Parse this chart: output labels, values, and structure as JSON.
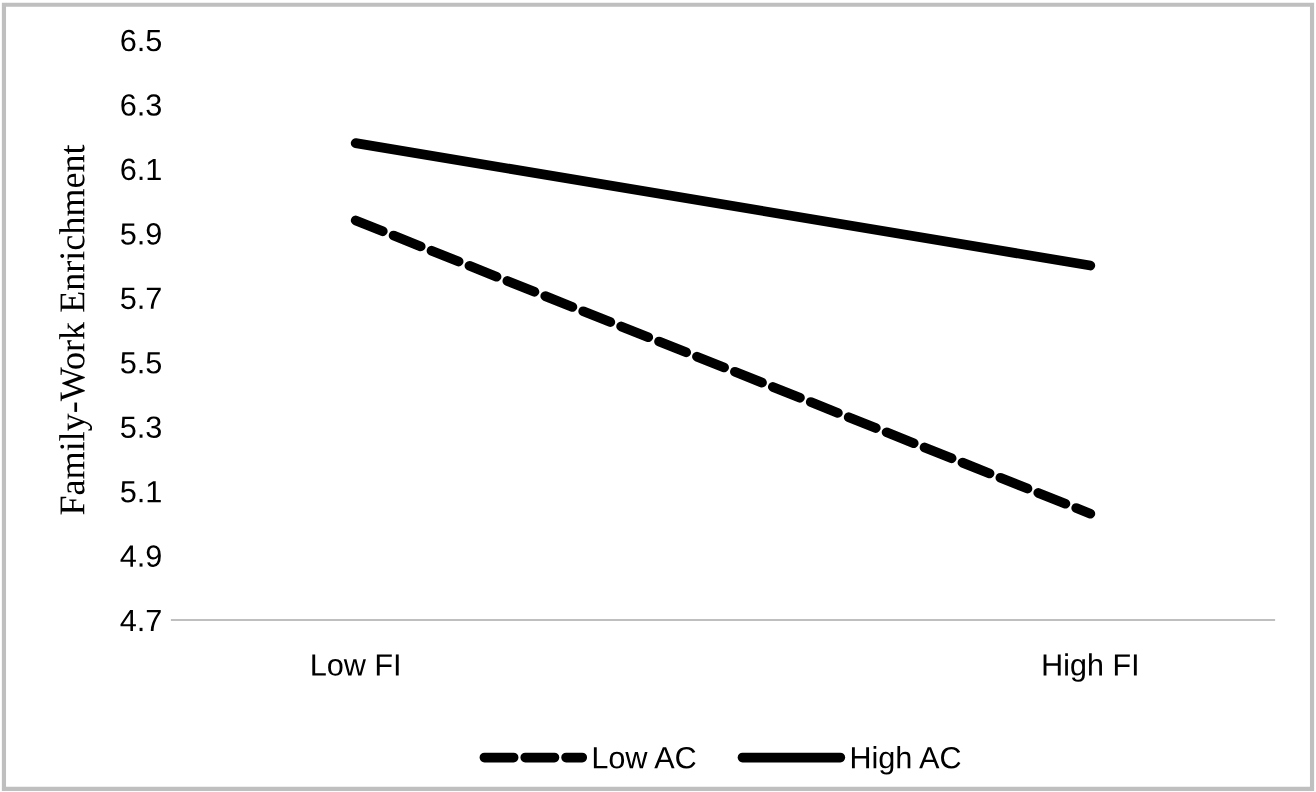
{
  "chart_data": {
    "type": "line",
    "ylabel": "Family-Work Enrichment",
    "categories": [
      "Low FI",
      "High FI"
    ],
    "series": [
      {
        "name": "Low AC",
        "color": "#000000",
        "values": [
          5.94,
          5.03
        ],
        "line_style": "dashed"
      },
      {
        "name": "High AC",
        "color": "#000000",
        "values": [
          6.18,
          5.8
        ],
        "line_style": "solid"
      }
    ],
    "ylim": [
      4.7,
      6.5
    ],
    "yticks": [
      4.7,
      4.9,
      5.1,
      5.3,
      5.5,
      5.7,
      5.9,
      6.1,
      6.3,
      6.5
    ],
    "grid": false,
    "legend": "bottom",
    "marker": "none"
  }
}
